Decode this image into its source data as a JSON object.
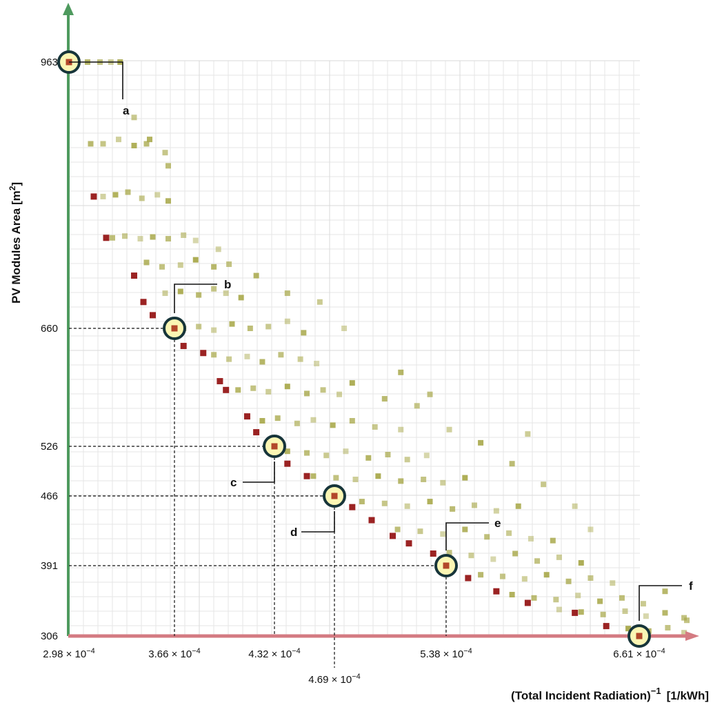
{
  "chart_data": {
    "type": "scatter",
    "title": "",
    "xlabel": "(Total Incident Radiation)",
    "xlabel_exponent": "−1",
    "xlabel_unit": "[1/kWh]",
    "ylabel": "PV Modules Area [m",
    "ylabel_exponent": "2",
    "ylabel_close": "]",
    "xlim": [
      0.000298,
      0.000697
    ],
    "ylim": [
      306,
      1000
    ],
    "grid": true,
    "x_ticks": [
      {
        "value": 0.000298,
        "label": "2.98 × 10",
        "exp": "−4"
      },
      {
        "value": 0.000366,
        "label": "3.66 × 10",
        "exp": "−4"
      },
      {
        "value": 0.000432,
        "label": "4.32 × 10",
        "exp": "−4"
      },
      {
        "value": 0.000469,
        "label": "4.69 × 10",
        "exp": "−4"
      },
      {
        "value": 0.000538,
        "label": "5.38 × 10",
        "exp": "−4"
      },
      {
        "value": 0.000661,
        "label": "6.61 × 10",
        "exp": "−4"
      }
    ],
    "y_ticks": [
      963,
      660,
      526,
      466,
      391,
      306
    ],
    "highlighted_points": [
      {
        "id": "a",
        "x": 0.000298,
        "y": 963
      },
      {
        "id": "b",
        "x": 0.000366,
        "y": 660
      },
      {
        "id": "c",
        "x": 0.000432,
        "y": 526
      },
      {
        "id": "d",
        "x": 0.000469,
        "y": 466
      },
      {
        "id": "e",
        "x": 0.000538,
        "y": 391
      },
      {
        "id": "f",
        "x": 0.000661,
        "y": 306
      }
    ],
    "pareto_front": [
      [
        0.000298,
        963
      ],
      [
        0.000314,
        810
      ],
      [
        0.000322,
        763
      ],
      [
        0.00034,
        720
      ],
      [
        0.000346,
        690
      ],
      [
        0.000352,
        675
      ],
      [
        0.000366,
        660
      ],
      [
        0.000372,
        640
      ],
      [
        0.000385,
        632
      ],
      [
        0.000396,
        600
      ],
      [
        0.0004,
        590
      ],
      [
        0.000414,
        560
      ],
      [
        0.00042,
        542
      ],
      [
        0.000432,
        526
      ],
      [
        0.00044,
        505
      ],
      [
        0.000452,
        490
      ],
      [
        0.000469,
        466
      ],
      [
        0.00048,
        454
      ],
      [
        0.000492,
        440
      ],
      [
        0.000505,
        423
      ],
      [
        0.000515,
        415
      ],
      [
        0.00053,
        404
      ],
      [
        0.000538,
        391
      ],
      [
        0.000552,
        376
      ],
      [
        0.00057,
        360
      ],
      [
        0.00059,
        346
      ],
      [
        0.00062,
        334
      ],
      [
        0.00064,
        318
      ],
      [
        0.000661,
        306
      ]
    ],
    "series": [
      {
        "color": "#a8a84a",
        "values": [
          [
            0.000302,
            963
          ],
          [
            0.00031,
            963
          ],
          [
            0.000318,
            963
          ],
          [
            0.000325,
            963
          ],
          [
            0.000331,
            963
          ],
          [
            0.000312,
            870
          ],
          [
            0.00032,
            870
          ],
          [
            0.00033,
            875
          ],
          [
            0.00034,
            868
          ],
          [
            0.000348,
            870
          ],
          [
            0.00036,
            860
          ],
          [
            0.00032,
            810
          ],
          [
            0.000328,
            812
          ],
          [
            0.000336,
            815
          ],
          [
            0.000345,
            808
          ],
          [
            0.000355,
            812
          ],
          [
            0.000362,
            805
          ],
          [
            0.000326,
            763
          ],
          [
            0.000334,
            765
          ],
          [
            0.000344,
            762
          ],
          [
            0.000352,
            764
          ],
          [
            0.000362,
            762
          ],
          [
            0.000372,
            766
          ],
          [
            0.00038,
            760
          ],
          [
            0.000348,
            735
          ],
          [
            0.000358,
            730
          ],
          [
            0.00037,
            732
          ],
          [
            0.00038,
            738
          ],
          [
            0.000392,
            730
          ],
          [
            0.000402,
            733
          ],
          [
            0.00036,
            700
          ],
          [
            0.00037,
            702
          ],
          [
            0.000382,
            698
          ],
          [
            0.000392,
            705
          ],
          [
            0.0004,
            700
          ],
          [
            0.00041,
            695
          ],
          [
            0.000372,
            660
          ],
          [
            0.000382,
            662
          ],
          [
            0.000392,
            658
          ],
          [
            0.000404,
            665
          ],
          [
            0.000416,
            660
          ],
          [
            0.000428,
            662
          ],
          [
            0.00044,
            668
          ],
          [
            0.00045,
            655
          ],
          [
            0.000392,
            630
          ],
          [
            0.000402,
            625
          ],
          [
            0.000414,
            628
          ],
          [
            0.000424,
            622
          ],
          [
            0.000436,
            630
          ],
          [
            0.000448,
            625
          ],
          [
            0.000458,
            620
          ],
          [
            0.000408,
            590
          ],
          [
            0.000418,
            592
          ],
          [
            0.000428,
            588
          ],
          [
            0.00044,
            594
          ],
          [
            0.000452,
            586
          ],
          [
            0.000462,
            590
          ],
          [
            0.000472,
            585
          ],
          [
            0.000424,
            555
          ],
          [
            0.000434,
            558
          ],
          [
            0.000446,
            552
          ],
          [
            0.000456,
            556
          ],
          [
            0.000468,
            550
          ],
          [
            0.00048,
            555
          ],
          [
            0.000494,
            548
          ],
          [
            0.00051,
            545
          ],
          [
            0.00044,
            520
          ],
          [
            0.000452,
            518
          ],
          [
            0.000464,
            515
          ],
          [
            0.000476,
            520
          ],
          [
            0.00049,
            512
          ],
          [
            0.000502,
            516
          ],
          [
            0.000514,
            510
          ],
          [
            0.000526,
            515
          ],
          [
            0.000456,
            490
          ],
          [
            0.00047,
            488
          ],
          [
            0.000482,
            486
          ],
          [
            0.000496,
            490
          ],
          [
            0.00051,
            484
          ],
          [
            0.000524,
            486
          ],
          [
            0.000536,
            482
          ],
          [
            0.00055,
            488
          ],
          [
            0.000486,
            460
          ],
          [
            0.0005,
            458
          ],
          [
            0.000514,
            455
          ],
          [
            0.000528,
            460
          ],
          [
            0.000542,
            452
          ],
          [
            0.000556,
            456
          ],
          [
            0.00057,
            450
          ],
          [
            0.000584,
            455
          ],
          [
            0.000508,
            430
          ],
          [
            0.000522,
            428
          ],
          [
            0.000536,
            425
          ],
          [
            0.00055,
            430
          ],
          [
            0.000564,
            422
          ],
          [
            0.000578,
            426
          ],
          [
            0.000592,
            420
          ],
          [
            0.000606,
            418
          ],
          [
            0.00054,
            405
          ],
          [
            0.000554,
            402
          ],
          [
            0.000568,
            398
          ],
          [
            0.000582,
            404
          ],
          [
            0.000596,
            396
          ],
          [
            0.00061,
            400
          ],
          [
            0.000624,
            394
          ],
          [
            0.00056,
            380
          ],
          [
            0.000574,
            378
          ],
          [
            0.000588,
            375
          ],
          [
            0.000602,
            380
          ],
          [
            0.000616,
            372
          ],
          [
            0.00063,
            376
          ],
          [
            0.000644,
            370
          ],
          [
            0.00058,
            356
          ],
          [
            0.000594,
            352
          ],
          [
            0.000608,
            350
          ],
          [
            0.000622,
            355
          ],
          [
            0.000636,
            348
          ],
          [
            0.00065,
            352
          ],
          [
            0.000664,
            345
          ],
          [
            0.00061,
            338
          ],
          [
            0.000624,
            335
          ],
          [
            0.000638,
            332
          ],
          [
            0.000652,
            336
          ],
          [
            0.000666,
            330
          ],
          [
            0.00068,
            334
          ],
          [
            0.000694,
            328
          ],
          [
            0.00064,
            318
          ],
          [
            0.000654,
            315
          ],
          [
            0.000668,
            312
          ],
          [
            0.000682,
            316
          ],
          [
            0.000694,
            310
          ],
          [
            0.00048,
            598
          ],
          [
            0.0005,
            580
          ],
          [
            0.00052,
            572
          ],
          [
            0.00054,
            545
          ],
          [
            0.00056,
            530
          ],
          [
            0.00058,
            505
          ],
          [
            0.0006,
            480
          ],
          [
            0.00062,
            455
          ],
          [
            0.00035,
            875
          ],
          [
            0.000362,
            845
          ],
          [
            0.00034,
            900
          ],
          [
            0.000395,
            750
          ],
          [
            0.00042,
            720
          ],
          [
            0.00044,
            700
          ],
          [
            0.00046,
            690
          ],
          [
            0.000475,
            660
          ],
          [
            0.00051,
            610
          ],
          [
            0.000528,
            585
          ],
          [
            0.00059,
            540
          ],
          [
            0.00063,
            430
          ],
          [
            0.00068,
            360
          ],
          [
            0.000696,
            325
          ]
        ]
      }
    ]
  },
  "callout_labels": {
    "a": "a",
    "b": "b",
    "c": "c",
    "d": "d",
    "e": "e",
    "f": "f"
  }
}
